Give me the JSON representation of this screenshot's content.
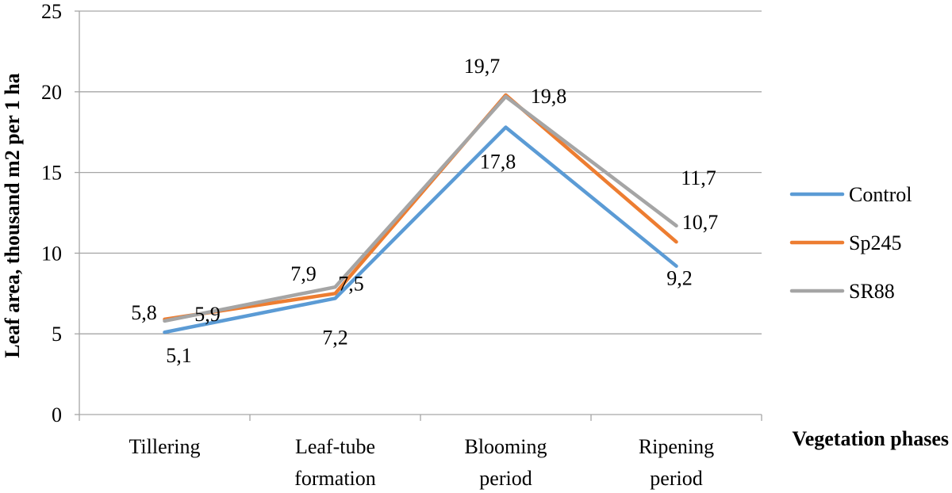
{
  "chart_data": {
    "type": "line",
    "categories": [
      [
        "Tillering"
      ],
      [
        "Leaf-tube",
        "formation"
      ],
      [
        "Blooming",
        "period"
      ],
      [
        "Ripening",
        "period"
      ]
    ],
    "series": [
      {
        "name": "Control",
        "color": "#5b9bd5",
        "values": [
          5.1,
          7.2,
          17.8,
          9.2
        ],
        "labels": [
          "5,1",
          "7,2",
          "17,8",
          "9,2"
        ]
      },
      {
        "name": "Sp245",
        "color": "#ed7d31",
        "values": [
          5.9,
          7.5,
          19.8,
          10.7
        ],
        "labels": [
          "5,9",
          "7,5",
          "19,8",
          "10,7"
        ]
      },
      {
        "name": "SR88",
        "color": "#a5a5a5",
        "values": [
          5.8,
          7.9,
          19.7,
          11.7
        ],
        "labels": [
          "5,8",
          "7,9",
          "19,7",
          "11,7"
        ]
      }
    ],
    "ylim": [
      0,
      25
    ],
    "yticks": [
      0,
      5,
      10,
      15,
      20,
      25
    ],
    "ylabel": "Leaf area, thousand m2 per 1 ha",
    "xlabel": "Vegetation phases",
    "grid": true,
    "legend_position": "right"
  }
}
